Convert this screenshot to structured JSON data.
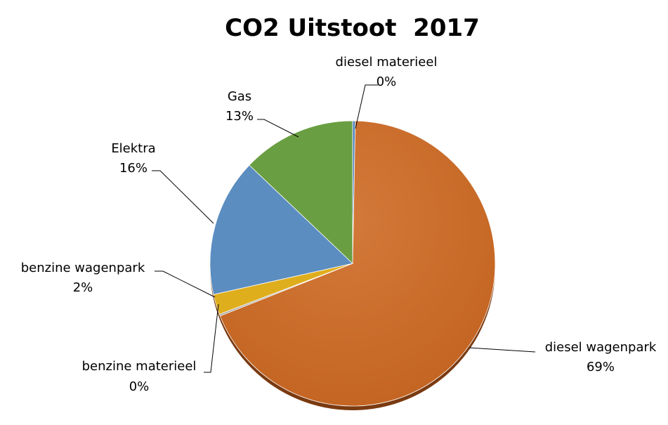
{
  "chart_data": {
    "type": "pie",
    "title": "CO2 Uitstoot  2017",
    "slices": [
      {
        "name": "diesel materieel",
        "percent_label": "0%",
        "value": 0.3,
        "color": "#4F81BD"
      },
      {
        "name": "diesel wagenpark",
        "percent_label": "69%",
        "value": 68.7,
        "color": "#CB6A2A"
      },
      {
        "name": "benzine materieel",
        "percent_label": "0%",
        "value": 0.2,
        "color": "#A5A5A5"
      },
      {
        "name": "benzine wagenpark",
        "percent_label": "2%",
        "value": 2.3,
        "color": "#DFAE1D"
      },
      {
        "name": "Elektra",
        "percent_label": "16%",
        "value": 15.6,
        "color": "#5B8DC0"
      },
      {
        "name": "Gas",
        "percent_label": "13%",
        "value": 12.9,
        "color": "#6A9E42"
      }
    ]
  }
}
